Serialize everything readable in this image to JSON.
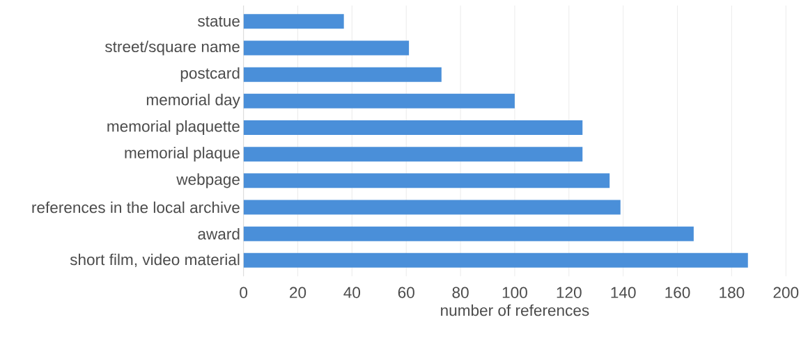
{
  "chart_data": {
    "type": "bar",
    "orientation": "horizontal",
    "categories": [
      "statue",
      "street/square name",
      "postcard",
      "memorial day",
      "memorial plaquette",
      "memorial plaque",
      "webpage",
      "references in the local archive",
      "award",
      "short film, video material"
    ],
    "values": [
      37,
      61,
      73,
      100,
      125,
      125,
      135,
      139,
      166,
      186
    ],
    "color": "#4a8fd9",
    "xlabel": "number of references",
    "xlim": [
      0,
      200
    ],
    "xticks": [
      0,
      20,
      40,
      60,
      80,
      100,
      120,
      140,
      160,
      180,
      200
    ],
    "grid": "x"
  }
}
